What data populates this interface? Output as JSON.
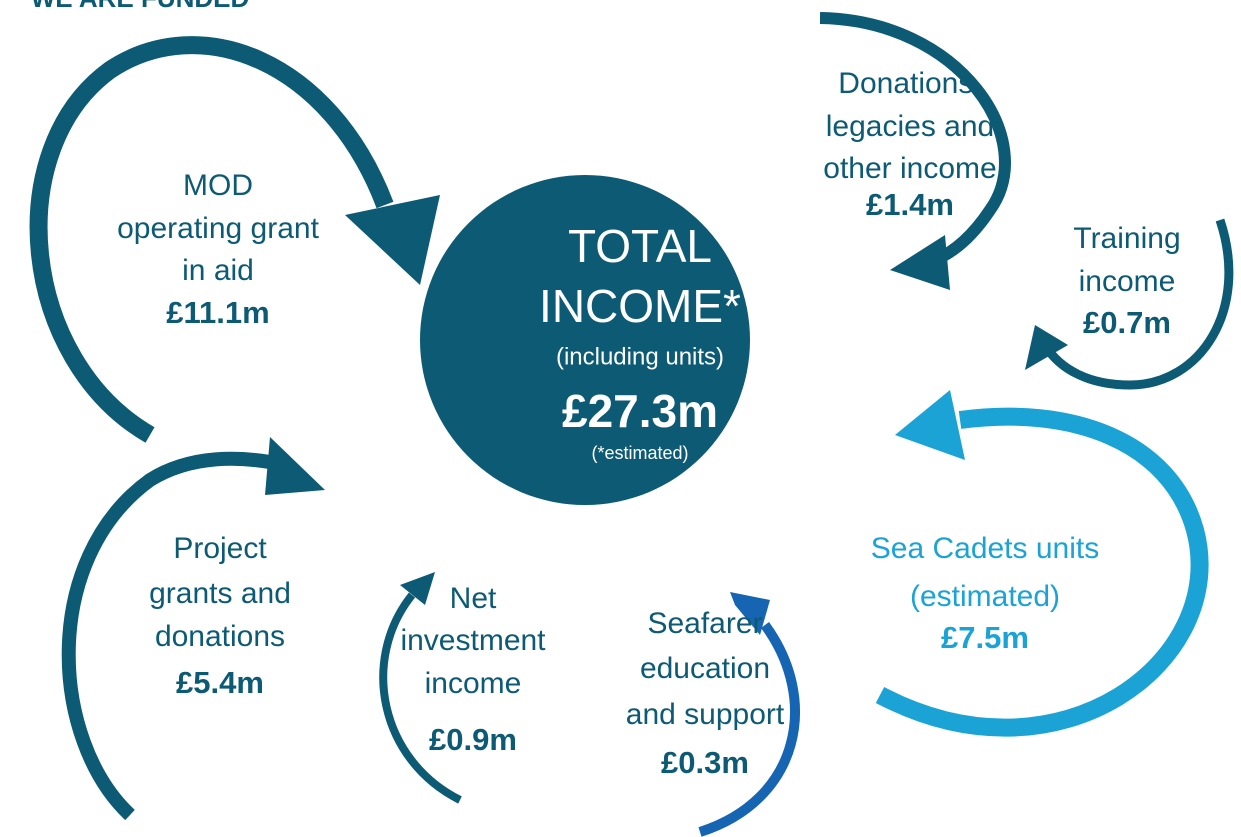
{
  "header": {
    "title": "WE ARE FUNDED"
  },
  "center": {
    "lines": [
      "TOTAL",
      "INCOME*",
      "(including units)"
    ],
    "amount": "£27.3m",
    "note": "(*estimated)"
  },
  "sources": [
    {
      "label": [
        "MOD",
        "operating grant",
        "in aid"
      ],
      "amount": "£11.1m"
    },
    {
      "label": [
        "Donations,",
        "legacies and",
        "other income"
      ],
      "amount": "£1.4m"
    },
    {
      "label": [
        "Training",
        "income"
      ],
      "amount": "£0.7m"
    },
    {
      "label": [
        "Sea Cadets units",
        "(estimated)"
      ],
      "amount": "£7.5m"
    },
    {
      "label": [
        "Project",
        "grants and",
        "donations"
      ],
      "amount": "£5.4m"
    },
    {
      "label": [
        "Net",
        "investment",
        "income"
      ],
      "amount": "£0.9m"
    },
    {
      "label": [
        "Seafarer",
        "education",
        "and support"
      ],
      "amount": "£0.3m"
    }
  ]
}
